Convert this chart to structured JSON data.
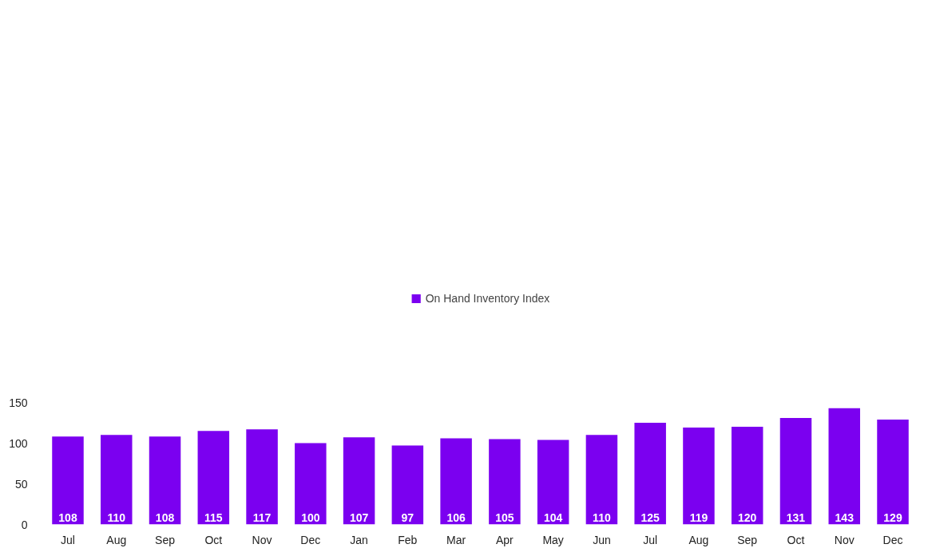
{
  "chart_data": {
    "type": "bar",
    "categories": [
      "Jul",
      "Aug",
      "Sep",
      "Oct",
      "Nov",
      "Dec",
      "Jan",
      "Feb",
      "Mar",
      "Apr",
      "May",
      "Jun",
      "Jul",
      "Aug",
      "Sep",
      "Oct",
      "Nov",
      "Dec"
    ],
    "series": [
      {
        "name": "On Hand Inventory Index",
        "color": "#7b00f0",
        "values": [
          108,
          110,
          108,
          115,
          117,
          100,
          107,
          97,
          106,
          105,
          104,
          110,
          125,
          119,
          120,
          131,
          143,
          129
        ]
      }
    ],
    "ylim": [
      0,
      150
    ],
    "yticks": [
      0,
      50,
      100,
      150
    ],
    "data_labels": true,
    "legend": "top",
    "grid": false
  }
}
